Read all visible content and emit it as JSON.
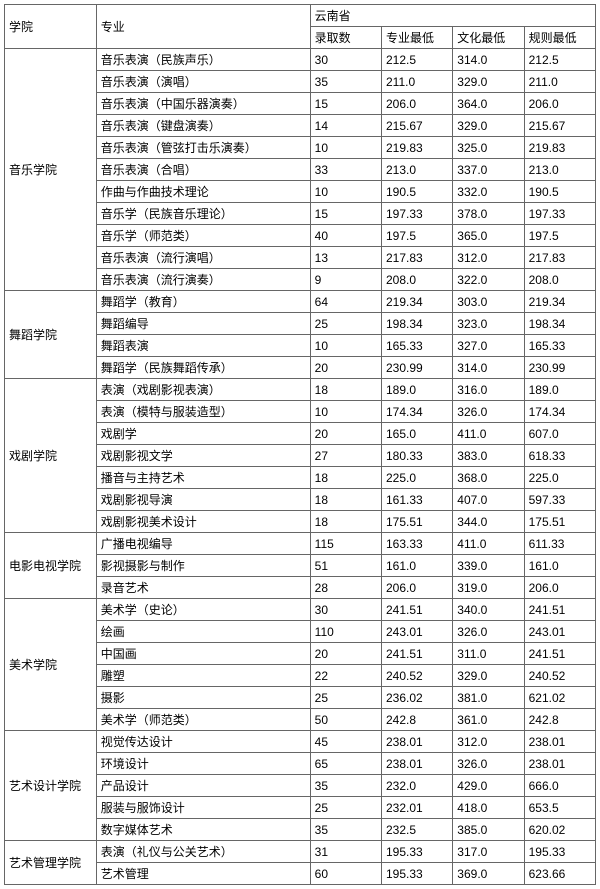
{
  "header": {
    "college": "学院",
    "major": "专业",
    "province": "云南省",
    "sub": [
      "录取数",
      "专业最低",
      "文化最低",
      "规则最低"
    ]
  },
  "groups": [
    {
      "college": "音乐学院",
      "rows": [
        {
          "major": "音乐表演（民族声乐）",
          "v": [
            "30",
            "212.5",
            "314.0",
            "212.5"
          ]
        },
        {
          "major": "音乐表演（演唱）",
          "v": [
            "35",
            "211.0",
            "329.0",
            "211.0"
          ]
        },
        {
          "major": "音乐表演（中国乐器演奏）",
          "v": [
            "15",
            "206.0",
            "364.0",
            "206.0"
          ]
        },
        {
          "major": "音乐表演（键盘演奏）",
          "v": [
            "14",
            "215.67",
            "329.0",
            "215.67"
          ]
        },
        {
          "major": "音乐表演（管弦打击乐演奏）",
          "v": [
            "10",
            "219.83",
            "325.0",
            "219.83"
          ]
        },
        {
          "major": "音乐表演（合唱）",
          "v": [
            "33",
            "213.0",
            "337.0",
            "213.0"
          ]
        },
        {
          "major": "作曲与作曲技术理论",
          "v": [
            "10",
            "190.5",
            "332.0",
            "190.5"
          ]
        },
        {
          "major": "音乐学（民族音乐理论）",
          "v": [
            "15",
            "197.33",
            "378.0",
            "197.33"
          ]
        },
        {
          "major": "音乐学（师范类）",
          "v": [
            "40",
            "197.5",
            "365.0",
            "197.5"
          ]
        },
        {
          "major": "音乐表演（流行演唱）",
          "v": [
            "13",
            "217.83",
            "312.0",
            "217.83"
          ]
        },
        {
          "major": "音乐表演（流行演奏）",
          "v": [
            "9",
            "208.0",
            "322.0",
            "208.0"
          ]
        }
      ]
    },
    {
      "college": "舞蹈学院",
      "rows": [
        {
          "major": "舞蹈学（教育）",
          "v": [
            "64",
            "219.34",
            "303.0",
            "219.34"
          ]
        },
        {
          "major": "舞蹈编导",
          "v": [
            "25",
            "198.34",
            "323.0",
            "198.34"
          ]
        },
        {
          "major": "舞蹈表演",
          "v": [
            "10",
            "165.33",
            "327.0",
            "165.33"
          ]
        },
        {
          "major": "舞蹈学（民族舞蹈传承）",
          "v": [
            "20",
            "230.99",
            "314.0",
            "230.99"
          ]
        }
      ]
    },
    {
      "college": "戏剧学院",
      "rows": [
        {
          "major": "表演（戏剧影视表演）",
          "v": [
            "18",
            "189.0",
            "316.0",
            "189.0"
          ]
        },
        {
          "major": "表演（模特与服装造型）",
          "v": [
            "10",
            "174.34",
            "326.0",
            "174.34"
          ]
        },
        {
          "major": "戏剧学",
          "v": [
            "20",
            "165.0",
            "411.0",
            "607.0"
          ]
        },
        {
          "major": "戏剧影视文学",
          "v": [
            "27",
            "180.33",
            "383.0",
            "618.33"
          ]
        },
        {
          "major": "播音与主持艺术",
          "v": [
            "18",
            "225.0",
            "368.0",
            "225.0"
          ]
        },
        {
          "major": "戏剧影视导演",
          "v": [
            "18",
            "161.33",
            "407.0",
            "597.33"
          ]
        },
        {
          "major": "戏剧影视美术设计",
          "v": [
            "18",
            "175.51",
            "344.0",
            "175.51"
          ]
        }
      ]
    },
    {
      "college": "电影电视学院",
      "rows": [
        {
          "major": "广播电视编导",
          "v": [
            "115",
            "163.33",
            "411.0",
            "611.33"
          ]
        },
        {
          "major": "影视摄影与制作",
          "v": [
            "51",
            "161.0",
            "339.0",
            "161.0"
          ]
        },
        {
          "major": "录音艺术",
          "v": [
            "28",
            "206.0",
            "319.0",
            "206.0"
          ]
        }
      ]
    },
    {
      "college": "美术学院",
      "rows": [
        {
          "major": "美术学（史论）",
          "v": [
            "30",
            "241.51",
            "340.0",
            "241.51"
          ]
        },
        {
          "major": "绘画",
          "v": [
            "110",
            "243.01",
            "326.0",
            "243.01"
          ]
        },
        {
          "major": "中国画",
          "v": [
            "20",
            "241.51",
            "311.0",
            "241.51"
          ]
        },
        {
          "major": "雕塑",
          "v": [
            "22",
            "240.52",
            "329.0",
            "240.52"
          ]
        },
        {
          "major": "摄影",
          "v": [
            "25",
            "236.02",
            "381.0",
            "621.02"
          ]
        },
        {
          "major": "美术学（师范类）",
          "v": [
            "50",
            "242.8",
            "361.0",
            "242.8"
          ]
        }
      ]
    },
    {
      "college": "艺术设计学院",
      "rows": [
        {
          "major": "视觉传达设计",
          "v": [
            "45",
            "238.01",
            "312.0",
            "238.01"
          ]
        },
        {
          "major": "环境设计",
          "v": [
            "65",
            "238.01",
            "326.0",
            "238.01"
          ]
        },
        {
          "major": "产品设计",
          "v": [
            "35",
            "232.0",
            "429.0",
            "666.0"
          ]
        },
        {
          "major": "服装与服饰设计",
          "v": [
            "25",
            "232.01",
            "418.0",
            "653.5"
          ]
        },
        {
          "major": "数字媒体艺术",
          "v": [
            "35",
            "232.5",
            "385.0",
            "620.02"
          ]
        }
      ]
    },
    {
      "college": "艺术管理学院",
      "rows": [
        {
          "major": "表演（礼仪与公关艺术）",
          "v": [
            "31",
            "195.33",
            "317.0",
            "195.33"
          ]
        },
        {
          "major": "艺术管理",
          "v": [
            "60",
            "195.33",
            "369.0",
            "623.66"
          ]
        }
      ]
    }
  ]
}
